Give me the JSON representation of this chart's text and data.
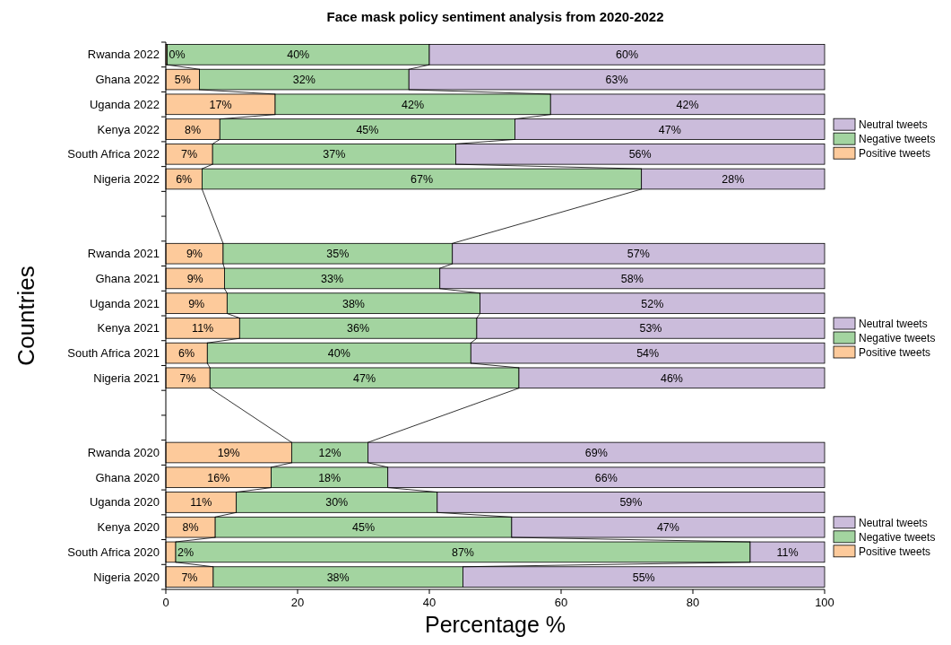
{
  "chart_data": {
    "type": "bar",
    "orientation": "horizontal",
    "stacked": true,
    "title": "Face mask policy sentiment analysis from 2020-2022",
    "xlabel": "Percentage %",
    "ylabel": "Countries",
    "categories": [
      "Rwanda 2022",
      "Ghana 2022",
      "Uganda 2022",
      "Kenya 2022",
      "South Africa 2022",
      "Nigeria 2022",
      null,
      null,
      "Rwanda 2021",
      "Ghana 2021",
      "Uganda 2021",
      "Kenya 2021",
      "South Africa 2021",
      "Nigeria 2021",
      null,
      null,
      "Rwanda 2020",
      "Ghana 2020",
      "Uganda 2020",
      "Kenya 2020",
      "South Africa 2020",
      "Nigeria 2020"
    ],
    "xlim": [
      0,
      100
    ],
    "xticks": [
      0,
      20,
      40,
      60,
      80,
      100
    ],
    "legend": "right",
    "series": [
      {
        "name": "Positive tweets",
        "color": "#fdca9b",
        "values": [
          0.2,
          5.1,
          16.6,
          8.2,
          7.1,
          5.5,
          null,
          null,
          8.7,
          8.9,
          9.3,
          11.2,
          6.3,
          6.7,
          null,
          null,
          19.1,
          16.0,
          10.7,
          7.5,
          1.5,
          7.2
        ],
        "value_labels": [
          "0%",
          "5%",
          "17%",
          "8%",
          "7%",
          "6%",
          null,
          null,
          "9%",
          "9%",
          "9%",
          "11%",
          "6%",
          "7%",
          null,
          null,
          "19%",
          "16%",
          "11%",
          "8%",
          "2%",
          "7%"
        ]
      },
      {
        "name": "Negative tweets",
        "color": "#a3d4a0",
        "values": [
          39.8,
          31.8,
          41.8,
          44.8,
          36.9,
          66.7,
          null,
          null,
          34.8,
          32.7,
          38.4,
          36.0,
          40.0,
          46.9,
          null,
          null,
          11.6,
          17.7,
          30.5,
          45.0,
          87.2,
          37.9
        ],
        "value_labels": [
          "40%",
          "32%",
          "42%",
          "45%",
          "37%",
          "67%",
          null,
          null,
          "35%",
          "33%",
          "38%",
          "36%",
          "40%",
          "47%",
          null,
          null,
          "12%",
          "18%",
          "30%",
          "45%",
          "87%",
          "38%"
        ]
      },
      {
        "name": "Neutral tweets",
        "color": "#cbbcdb",
        "values": [
          60.0,
          63.1,
          41.6,
          47.0,
          56.0,
          27.8,
          null,
          null,
          56.5,
          58.4,
          52.3,
          52.8,
          53.7,
          46.4,
          null,
          null,
          69.3,
          66.3,
          58.8,
          47.5,
          11.3,
          54.9
        ],
        "value_labels": [
          "60%",
          "63%",
          "42%",
          "47%",
          "56%",
          "28%",
          null,
          null,
          "57%",
          "58%",
          "52%",
          "53%",
          "54%",
          "46%",
          null,
          null,
          "69%",
          "66%",
          "59%",
          "47%",
          "11%",
          "55%"
        ]
      }
    ]
  }
}
